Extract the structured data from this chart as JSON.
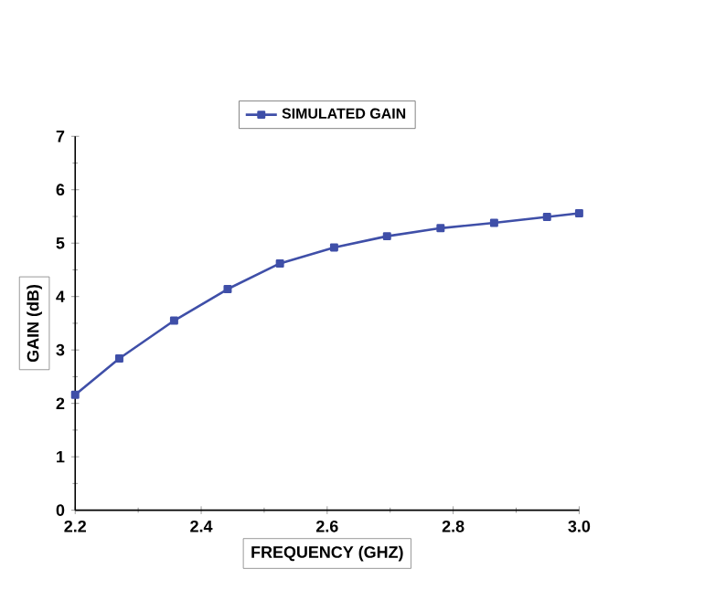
{
  "chart_data": {
    "type": "line",
    "xlabel": "FREQUENCY (GHZ)",
    "ylabel": "GAIN (dB)",
    "x": [
      2.2,
      2.27,
      2.357,
      2.442,
      2.525,
      2.611,
      2.695,
      2.78,
      2.865,
      2.949,
      3.0
    ],
    "series": [
      {
        "name": "SIMULATED GAIN",
        "color": "#3f4fa8",
        "values": [
          2.16,
          2.84,
          3.55,
          4.14,
          4.62,
          4.92,
          5.13,
          5.28,
          5.38,
          5.49,
          5.56
        ]
      }
    ],
    "xlim": [
      2.2,
      3.0
    ],
    "ylim": [
      0,
      7
    ],
    "xticks": [
      {
        "value": 2.2,
        "label": "2.2"
      },
      {
        "value": 2.4,
        "label": "2.4"
      },
      {
        "value": 2.6,
        "label": "2.6"
      },
      {
        "value": 2.8,
        "label": "2.8"
      },
      {
        "value": 3.0,
        "label": "3.0"
      }
    ],
    "yticks": [
      0,
      1,
      2,
      3,
      4,
      5,
      6,
      7
    ],
    "marker": "square",
    "legend": "top",
    "grid": false
  }
}
